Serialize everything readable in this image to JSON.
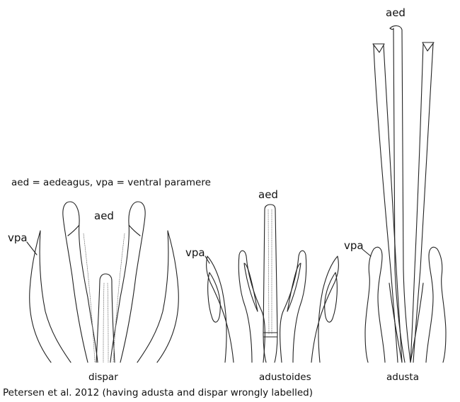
{
  "legend": "aed = aedeagus, vpa = ventral paramere",
  "caption": "Petersen et al. 2012 (having adusta and dispar wrongly labelled)",
  "labels": {
    "aed": "aed",
    "vpa": "vpa"
  },
  "species": {
    "left": "dispar",
    "middle": "adustoides",
    "right": "adusta"
  }
}
